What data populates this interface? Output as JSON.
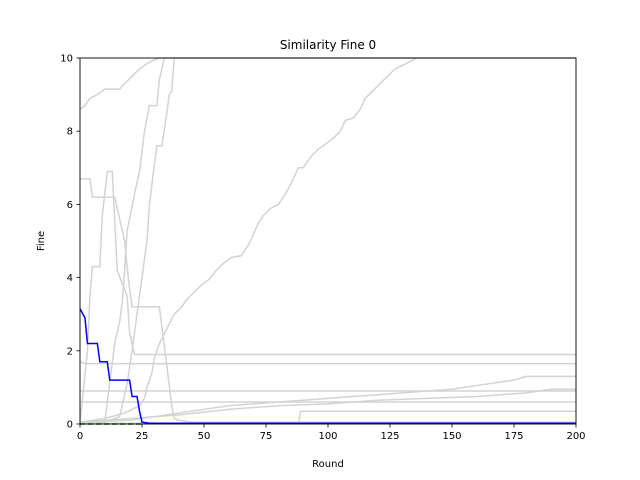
{
  "chart_data": {
    "type": "line",
    "title": "Similarity Fine 0",
    "xlabel": "Round",
    "ylabel": "Fine",
    "xlim": [
      0,
      200
    ],
    "ylim": [
      0,
      10
    ],
    "xticks": [
      0,
      25,
      50,
      75,
      100,
      125,
      150,
      175,
      200
    ],
    "yticks": [
      0,
      2,
      4,
      6,
      8,
      10
    ],
    "grid": false,
    "legend": "none",
    "colors": {
      "background": "#ffffff",
      "axis": "#000000",
      "gray": "#d3d3d3",
      "blue": "#0000ff",
      "green": "#008000"
    },
    "series": [
      {
        "color": "#d3d3d3",
        "style": "step",
        "points": [
          [
            0,
            8.6
          ],
          [
            2,
            8.7
          ],
          [
            4,
            8.9
          ],
          [
            7,
            9.0
          ],
          [
            10,
            9.15
          ],
          [
            16,
            9.15
          ],
          [
            18,
            9.3
          ],
          [
            21,
            9.5
          ],
          [
            24,
            9.7
          ],
          [
            27,
            9.85
          ],
          [
            30,
            9.95
          ],
          [
            32,
            10
          ],
          [
            200,
            10
          ]
        ]
      },
      {
        "color": "#d3d3d3",
        "style": "step",
        "points": [
          [
            0,
            6.7
          ],
          [
            4,
            6.7
          ],
          [
            5,
            6.2
          ],
          [
            14,
            6.2
          ],
          [
            16,
            5.6
          ],
          [
            18,
            5.0
          ],
          [
            19,
            4.3
          ],
          [
            20,
            3.7
          ],
          [
            21,
            3.2
          ],
          [
            29,
            3.2
          ],
          [
            32,
            3.2
          ],
          [
            35,
            1.6
          ],
          [
            37,
            0.5
          ],
          [
            38,
            0.15
          ],
          [
            40,
            0.1
          ],
          [
            45,
            0.05
          ],
          [
            200,
            0.05
          ]
        ]
      },
      {
        "color": "#d3d3d3",
        "style": "step",
        "points": [
          [
            0,
            0.05
          ],
          [
            3,
            2.0
          ],
          [
            4,
            3.5
          ],
          [
            5,
            4.3
          ],
          [
            8,
            4.3
          ],
          [
            9,
            5.7
          ],
          [
            11,
            6.9
          ],
          [
            13,
            6.9
          ],
          [
            15,
            4.2
          ],
          [
            19,
            3.5
          ],
          [
            20,
            2.5
          ],
          [
            21,
            2.2
          ],
          [
            22,
            1.9
          ],
          [
            200,
            1.9
          ]
        ]
      },
      {
        "color": "#d3d3d3",
        "style": "step",
        "points": [
          [
            0,
            1.7
          ],
          [
            2,
            1.65
          ],
          [
            200,
            1.65
          ]
        ]
      },
      {
        "color": "#d3d3d3",
        "style": "step",
        "points": [
          [
            0,
            0.9
          ],
          [
            200,
            0.9
          ]
        ]
      },
      {
        "color": "#d3d3d3",
        "style": "step",
        "points": [
          [
            0,
            0.6
          ],
          [
            200,
            0.6
          ]
        ]
      },
      {
        "color": "#d3d3d3",
        "style": "step",
        "points": [
          [
            0,
            0.02
          ],
          [
            10,
            0.05
          ],
          [
            14,
            2.2
          ],
          [
            16,
            2.8
          ],
          [
            17,
            3.3
          ],
          [
            18,
            4.2
          ],
          [
            19,
            5.3
          ],
          [
            20,
            5.6
          ],
          [
            22,
            6.3
          ],
          [
            24,
            6.9
          ],
          [
            26,
            8.0
          ],
          [
            28,
            8.7
          ],
          [
            31,
            8.7
          ],
          [
            32,
            9.4
          ],
          [
            34,
            10
          ],
          [
            200,
            10
          ]
        ]
      },
      {
        "color": "#d3d3d3",
        "style": "step",
        "points": [
          [
            0,
            0.05
          ],
          [
            12,
            0.1
          ],
          [
            16,
            0.2
          ],
          [
            19,
            1.1
          ],
          [
            21,
            2.0
          ],
          [
            23,
            3.0
          ],
          [
            25,
            4.0
          ],
          [
            27,
            5.0
          ],
          [
            28,
            6.0
          ],
          [
            30,
            7.1
          ],
          [
            31,
            7.6
          ],
          [
            33,
            7.6
          ],
          [
            35,
            8.5
          ],
          [
            36,
            9.0
          ],
          [
            37,
            9.1
          ],
          [
            38,
            10
          ],
          [
            200,
            10
          ]
        ]
      },
      {
        "color": "#d3d3d3",
        "style": "step",
        "points": [
          [
            0,
            0.05
          ],
          [
            10,
            0.15
          ],
          [
            18,
            0.3
          ],
          [
            24,
            0.5
          ],
          [
            26,
            0.7
          ],
          [
            27,
            1.0
          ],
          [
            29,
            1.4
          ],
          [
            30,
            1.8
          ],
          [
            32,
            2.2
          ],
          [
            35,
            2.6
          ],
          [
            38,
            3.0
          ],
          [
            41,
            3.2
          ],
          [
            43,
            3.4
          ],
          [
            46,
            3.6
          ],
          [
            49,
            3.8
          ],
          [
            52,
            3.95
          ],
          [
            55,
            4.2
          ],
          [
            58,
            4.4
          ],
          [
            61,
            4.55
          ],
          [
            65,
            4.6
          ],
          [
            68,
            4.9
          ],
          [
            70,
            5.2
          ],
          [
            72,
            5.5
          ],
          [
            74,
            5.7
          ],
          [
            77,
            5.9
          ],
          [
            80,
            6.0
          ],
          [
            83,
            6.3
          ],
          [
            86,
            6.7
          ],
          [
            88,
            7.0
          ],
          [
            90,
            7.0
          ],
          [
            93,
            7.3
          ],
          [
            96,
            7.5
          ],
          [
            100,
            7.7
          ],
          [
            102,
            7.8
          ],
          [
            105,
            8.0
          ],
          [
            107,
            8.3
          ],
          [
            110,
            8.35
          ],
          [
            113,
            8.6
          ],
          [
            115,
            8.9
          ],
          [
            118,
            9.1
          ],
          [
            121,
            9.3
          ],
          [
            124,
            9.5
          ],
          [
            127,
            9.7
          ],
          [
            130,
            9.8
          ],
          [
            133,
            9.9
          ],
          [
            136,
            10
          ],
          [
            200,
            10
          ]
        ]
      },
      {
        "color": "#d3d3d3",
        "style": "step",
        "points": [
          [
            0,
            0.05
          ],
          [
            20,
            0.1
          ],
          [
            30,
            0.2
          ],
          [
            40,
            0.3
          ],
          [
            50,
            0.4
          ],
          [
            60,
            0.5
          ],
          [
            70,
            0.55
          ],
          [
            80,
            0.6
          ],
          [
            90,
            0.65
          ],
          [
            100,
            0.7
          ],
          [
            110,
            0.75
          ],
          [
            120,
            0.8
          ],
          [
            130,
            0.85
          ],
          [
            140,
            0.9
          ],
          [
            150,
            0.95
          ],
          [
            160,
            1.05
          ],
          [
            170,
            1.15
          ],
          [
            175,
            1.2
          ],
          [
            180,
            1.3
          ],
          [
            200,
            1.3
          ]
        ]
      },
      {
        "color": "#d3d3d3",
        "style": "step",
        "points": [
          [
            0,
            0.05
          ],
          [
            20,
            0.15
          ],
          [
            40,
            0.25
          ],
          [
            60,
            0.4
          ],
          [
            80,
            0.5
          ],
          [
            100,
            0.55
          ],
          [
            120,
            0.65
          ],
          [
            140,
            0.7
          ],
          [
            160,
            0.75
          ],
          [
            180,
            0.85
          ],
          [
            190,
            0.95
          ],
          [
            200,
            0.95
          ]
        ]
      },
      {
        "color": "#d3d3d3",
        "style": "step",
        "points": [
          [
            0,
            0.02
          ],
          [
            88,
            0.02
          ],
          [
            89,
            0.35
          ],
          [
            200,
            0.35
          ]
        ]
      },
      {
        "color": "#0000ff",
        "style": "step",
        "points": [
          [
            0,
            3.15
          ],
          [
            2,
            2.9
          ],
          [
            3,
            2.2
          ],
          [
            7,
            2.2
          ],
          [
            8,
            1.7
          ],
          [
            11,
            1.7
          ],
          [
            12,
            1.2
          ],
          [
            20,
            1.2
          ],
          [
            21,
            0.75
          ],
          [
            23,
            0.75
          ],
          [
            24,
            0.35
          ],
          [
            25,
            0.05
          ],
          [
            28,
            0.02
          ],
          [
            35,
            0.02
          ],
          [
            200,
            0.02
          ]
        ]
      },
      {
        "color": "#008000",
        "style": "dashed",
        "points": [
          [
            0,
            0.0
          ],
          [
            25,
            0.0
          ]
        ]
      }
    ]
  }
}
